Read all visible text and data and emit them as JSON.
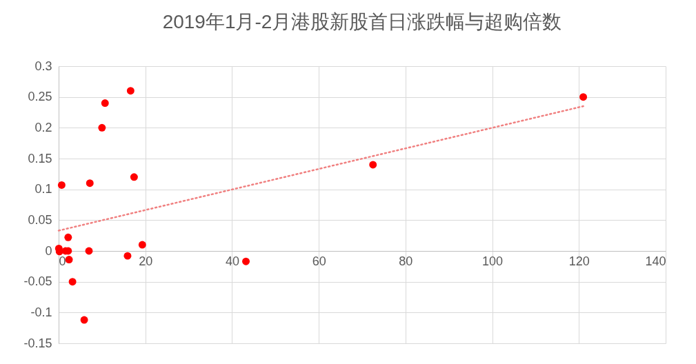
{
  "chart_data": {
    "type": "scatter",
    "title": "2019年1月-2月港股新股首日涨跌幅与超购倍数",
    "series": [
      {
        "color": "#ff0000",
        "marker": "circle",
        "x": [
          0.05,
          0.2,
          1.6,
          2.2,
          2.2,
          0.7,
          2.4,
          3.2,
          5.9,
          7,
          7.2,
          10,
          10.7,
          16.6,
          17.4,
          15.9,
          19.3,
          43.2,
          72.5,
          121
        ],
        "values": [
          0.004,
          -0.001,
          0,
          0,
          0.022,
          0.107,
          -0.014,
          -0.05,
          -0.112,
          0,
          0.11,
          0.2,
          0.24,
          0.26,
          0.12,
          -0.008,
          0.01,
          -0.017,
          0.14,
          0.25
        ]
      },
      {
        "type": "line",
        "color": "#f08080",
        "line_style": "dotted",
        "marker": "none",
        "x": [
          0,
          121
        ],
        "values": [
          0.033,
          0.235
        ]
      }
    ],
    "xlim": [
      0,
      140
    ],
    "xticks": [
      0,
      20,
      40,
      60,
      80,
      100,
      120,
      140
    ],
    "ylim": [
      -0.15,
      0.3
    ],
    "yticks": [
      -0.15,
      -0.1,
      -0.05,
      0,
      0.05,
      0.1,
      0.15,
      0.2,
      0.25,
      0.3
    ],
    "grid": true
  }
}
